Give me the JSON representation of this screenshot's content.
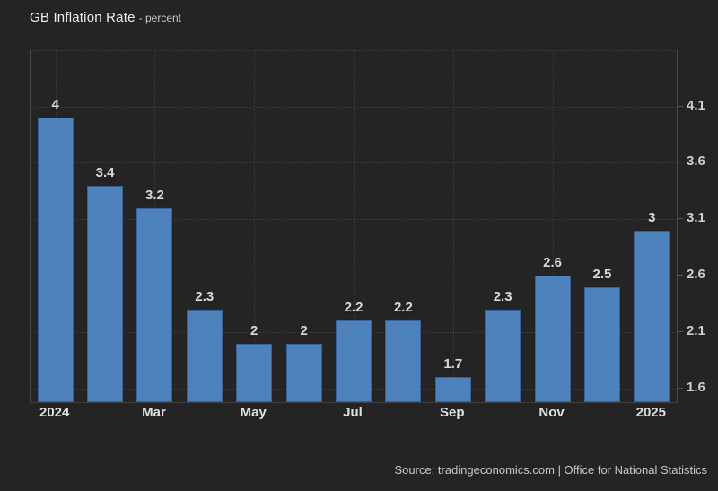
{
  "header": {
    "title": "GB Inflation Rate",
    "subtitle": "- percent"
  },
  "footer": {
    "source_text": "Source: tradingeconomics.com | Office for National Statistics"
  },
  "chart_data": {
    "type": "bar",
    "title": "GB Inflation Rate",
    "subtitle": "percent",
    "values": [
      4,
      3.4,
      3.2,
      2.3,
      2,
      2,
      2.2,
      2.2,
      1.7,
      2.3,
      2.6,
      2.5,
      3
    ],
    "bar_count": 13,
    "x_ticks": [
      {
        "index": 0,
        "label": "2024"
      },
      {
        "index": 2,
        "label": "Mar"
      },
      {
        "index": 4,
        "label": "May"
      },
      {
        "index": 6,
        "label": "Jul"
      },
      {
        "index": 8,
        "label": "Sep"
      },
      {
        "index": 10,
        "label": "Nov"
      },
      {
        "index": 12,
        "label": "2025"
      }
    ],
    "y_ticks": [
      4.1,
      3.6,
      3.1,
      2.6,
      2.1,
      1.6
    ],
    "ylim": [
      1.48,
      4.59
    ],
    "y_axis_side": "right",
    "grid": "dotted",
    "legend": "none",
    "colors": {
      "background": "#242424",
      "bar_fill": "#4e82bd",
      "bar_border": "#3a6191",
      "grid_line": "#3c3c3c",
      "axis_line": "#4a4a4a",
      "label_text": "#d9d9d9"
    }
  }
}
